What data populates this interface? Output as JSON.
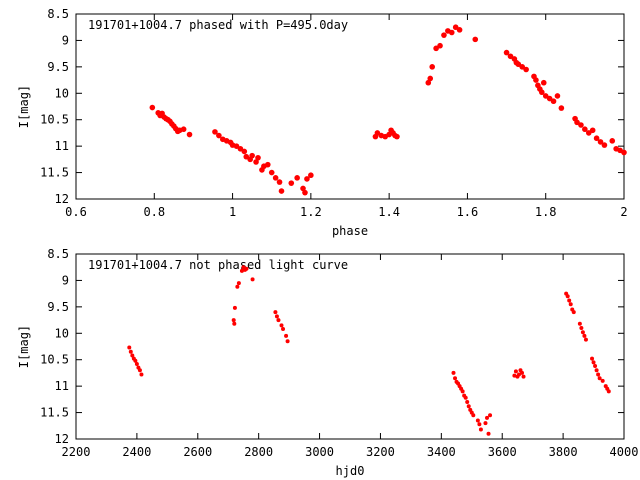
{
  "chart_data": [
    {
      "type": "scatter",
      "title": "191701+1004.7 phased with P=495.0day",
      "xlabel": "phase",
      "ylabel": "I[mag]",
      "xlim": [
        0.6,
        2.0
      ],
      "ylim": [
        8.5,
        12.0
      ],
      "y_inverted": true,
      "xticks": [
        "0.6",
        "0.8",
        "1",
        "1.2",
        "1.4",
        "1.6",
        "1.8",
        "2"
      ],
      "xtick_values": [
        0.6,
        0.8,
        1.0,
        1.2,
        1.4,
        1.6,
        1.8,
        2.0
      ],
      "yticks": [
        "8.5",
        "9",
        "9.5",
        "10",
        "10.5",
        "11",
        "11.5",
        "12"
      ],
      "ytick_values": [
        8.5,
        9.0,
        9.5,
        10.0,
        10.5,
        11.0,
        11.5,
        12.0
      ],
      "point_color": "#ff0000",
      "series": [
        {
          "name": "phased",
          "points": [
            [
              0.795,
              10.27
            ],
            [
              0.81,
              10.37
            ],
            [
              0.815,
              10.42
            ],
            [
              0.82,
              10.38
            ],
            [
              0.825,
              10.45
            ],
            [
              0.83,
              10.48
            ],
            [
              0.835,
              10.5
            ],
            [
              0.84,
              10.53
            ],
            [
              0.845,
              10.58
            ],
            [
              0.85,
              10.62
            ],
            [
              0.855,
              10.67
            ],
            [
              0.86,
              10.72
            ],
            [
              0.865,
              10.7
            ],
            [
              0.875,
              10.68
            ],
            [
              0.89,
              10.78
            ],
            [
              0.955,
              10.73
            ],
            [
              0.965,
              10.8
            ],
            [
              0.975,
              10.87
            ],
            [
              0.985,
              10.9
            ],
            [
              0.995,
              10.93
            ],
            [
              1.0,
              10.98
            ],
            [
              1.01,
              11.0
            ],
            [
              1.02,
              11.05
            ],
            [
              1.03,
              11.1
            ],
            [
              1.035,
              11.2
            ],
            [
              1.045,
              11.25
            ],
            [
              1.05,
              11.18
            ],
            [
              1.06,
              11.3
            ],
            [
              1.065,
              11.22
            ],
            [
              1.075,
              11.45
            ],
            [
              1.08,
              11.38
            ],
            [
              1.09,
              11.35
            ],
            [
              1.1,
              11.5
            ],
            [
              1.11,
              11.6
            ],
            [
              1.12,
              11.68
            ],
            [
              1.125,
              11.85
            ],
            [
              1.15,
              11.7
            ],
            [
              1.165,
              11.6
            ],
            [
              1.18,
              11.8
            ],
            [
              1.185,
              11.88
            ],
            [
              1.19,
              11.62
            ],
            [
              1.2,
              11.55
            ],
            [
              1.365,
              10.82
            ],
            [
              1.37,
              10.75
            ],
            [
              1.38,
              10.8
            ],
            [
              1.39,
              10.82
            ],
            [
              1.4,
              10.78
            ],
            [
              1.405,
              10.7
            ],
            [
              1.41,
              10.75
            ],
            [
              1.415,
              10.8
            ],
            [
              1.42,
              10.82
            ],
            [
              1.5,
              9.8
            ],
            [
              1.505,
              9.72
            ],
            [
              1.51,
              9.5
            ],
            [
              1.52,
              9.15
            ],
            [
              1.53,
              9.1
            ],
            [
              1.54,
              8.9
            ],
            [
              1.55,
              8.82
            ],
            [
              1.56,
              8.85
            ],
            [
              1.57,
              8.75
            ],
            [
              1.58,
              8.8
            ],
            [
              1.62,
              8.98
            ],
            [
              1.7,
              9.23
            ],
            [
              1.71,
              9.3
            ],
            [
              1.72,
              9.35
            ],
            [
              1.725,
              9.42
            ],
            [
              1.73,
              9.45
            ],
            [
              1.74,
              9.5
            ],
            [
              1.75,
              9.55
            ],
            [
              1.77,
              9.68
            ],
            [
              1.775,
              9.75
            ],
            [
              1.78,
              9.85
            ],
            [
              1.785,
              9.92
            ],
            [
              1.79,
              9.98
            ],
            [
              1.795,
              9.8
            ],
            [
              1.8,
              10.05
            ],
            [
              1.81,
              10.1
            ],
            [
              1.82,
              10.15
            ],
            [
              1.83,
              10.05
            ],
            [
              1.84,
              10.28
            ],
            [
              1.875,
              10.48
            ],
            [
              1.88,
              10.55
            ],
            [
              1.89,
              10.6
            ],
            [
              1.9,
              10.68
            ],
            [
              1.91,
              10.75
            ],
            [
              1.92,
              10.7
            ],
            [
              1.93,
              10.85
            ],
            [
              1.94,
              10.92
            ],
            [
              1.95,
              10.98
            ],
            [
              1.97,
              10.9
            ],
            [
              1.98,
              11.05
            ],
            [
              1.99,
              11.08
            ],
            [
              2.0,
              11.12
            ]
          ]
        }
      ]
    },
    {
      "type": "scatter",
      "title": "191701+1004.7 not phased light curve",
      "xlabel": "hjd0",
      "ylabel": "I[mag]",
      "xlim": [
        2200,
        4000
      ],
      "ylim": [
        8.5,
        12.0
      ],
      "y_inverted": true,
      "xticks": [
        "2200",
        "2400",
        "2600",
        "2800",
        "3000",
        "3200",
        "3400",
        "3600",
        "3800",
        "4000"
      ],
      "xtick_values": [
        2200,
        2400,
        2600,
        2800,
        3000,
        3200,
        3400,
        3600,
        3800,
        4000
      ],
      "yticks": [
        "8.5",
        "9",
        "9.5",
        "10",
        "10.5",
        "11",
        "11.5",
        "12"
      ],
      "ytick_values": [
        8.5,
        9.0,
        9.5,
        10.0,
        10.5,
        11.0,
        11.5,
        12.0
      ],
      "point_color": "#ff0000",
      "series": [
        {
          "name": "light curve",
          "points": [
            [
              2375,
              10.27
            ],
            [
              2380,
              10.35
            ],
            [
              2385,
              10.42
            ],
            [
              2390,
              10.48
            ],
            [
              2395,
              10.52
            ],
            [
              2400,
              10.58
            ],
            [
              2405,
              10.65
            ],
            [
              2410,
              10.7
            ],
            [
              2415,
              10.78
            ],
            [
              2718,
              9.75
            ],
            [
              2720,
              9.82
            ],
            [
              2722,
              9.52
            ],
            [
              2730,
              9.12
            ],
            [
              2735,
              9.05
            ],
            [
              2745,
              8.82
            ],
            [
              2750,
              8.75
            ],
            [
              2755,
              8.8
            ],
            [
              2760,
              8.78
            ],
            [
              2780,
              8.98
            ],
            [
              2855,
              9.6
            ],
            [
              2860,
              9.68
            ],
            [
              2865,
              9.75
            ],
            [
              2875,
              9.85
            ],
            [
              2880,
              9.92
            ],
            [
              2890,
              10.05
            ],
            [
              2895,
              10.15
            ],
            [
              3440,
              10.75
            ],
            [
              3445,
              10.85
            ],
            [
              3450,
              10.92
            ],
            [
              3455,
              10.95
            ],
            [
              3460,
              11.0
            ],
            [
              3465,
              11.05
            ],
            [
              3470,
              11.1
            ],
            [
              3475,
              11.18
            ],
            [
              3480,
              11.22
            ],
            [
              3485,
              11.3
            ],
            [
              3490,
              11.38
            ],
            [
              3495,
              11.45
            ],
            [
              3500,
              11.5
            ],
            [
              3505,
              11.55
            ],
            [
              3520,
              11.65
            ],
            [
              3525,
              11.72
            ],
            [
              3530,
              11.82
            ],
            [
              3545,
              11.7
            ],
            [
              3550,
              11.6
            ],
            [
              3555,
              11.9
            ],
            [
              3560,
              11.55
            ],
            [
              3640,
              10.8
            ],
            [
              3645,
              10.72
            ],
            [
              3650,
              10.82
            ],
            [
              3655,
              10.78
            ],
            [
              3660,
              10.7
            ],
            [
              3665,
              10.75
            ],
            [
              3670,
              10.82
            ],
            [
              3810,
              9.25
            ],
            [
              3815,
              9.3
            ],
            [
              3820,
              9.38
            ],
            [
              3825,
              9.45
            ],
            [
              3830,
              9.55
            ],
            [
              3835,
              9.6
            ],
            [
              3855,
              9.82
            ],
            [
              3860,
              9.9
            ],
            [
              3865,
              9.98
            ],
            [
              3870,
              10.05
            ],
            [
              3875,
              10.12
            ],
            [
              3895,
              10.48
            ],
            [
              3900,
              10.55
            ],
            [
              3905,
              10.62
            ],
            [
              3910,
              10.7
            ],
            [
              3915,
              10.78
            ],
            [
              3920,
              10.85
            ],
            [
              3930,
              10.9
            ],
            [
              3940,
              11.0
            ],
            [
              3945,
              11.05
            ],
            [
              3950,
              11.1
            ]
          ]
        }
      ]
    }
  ]
}
